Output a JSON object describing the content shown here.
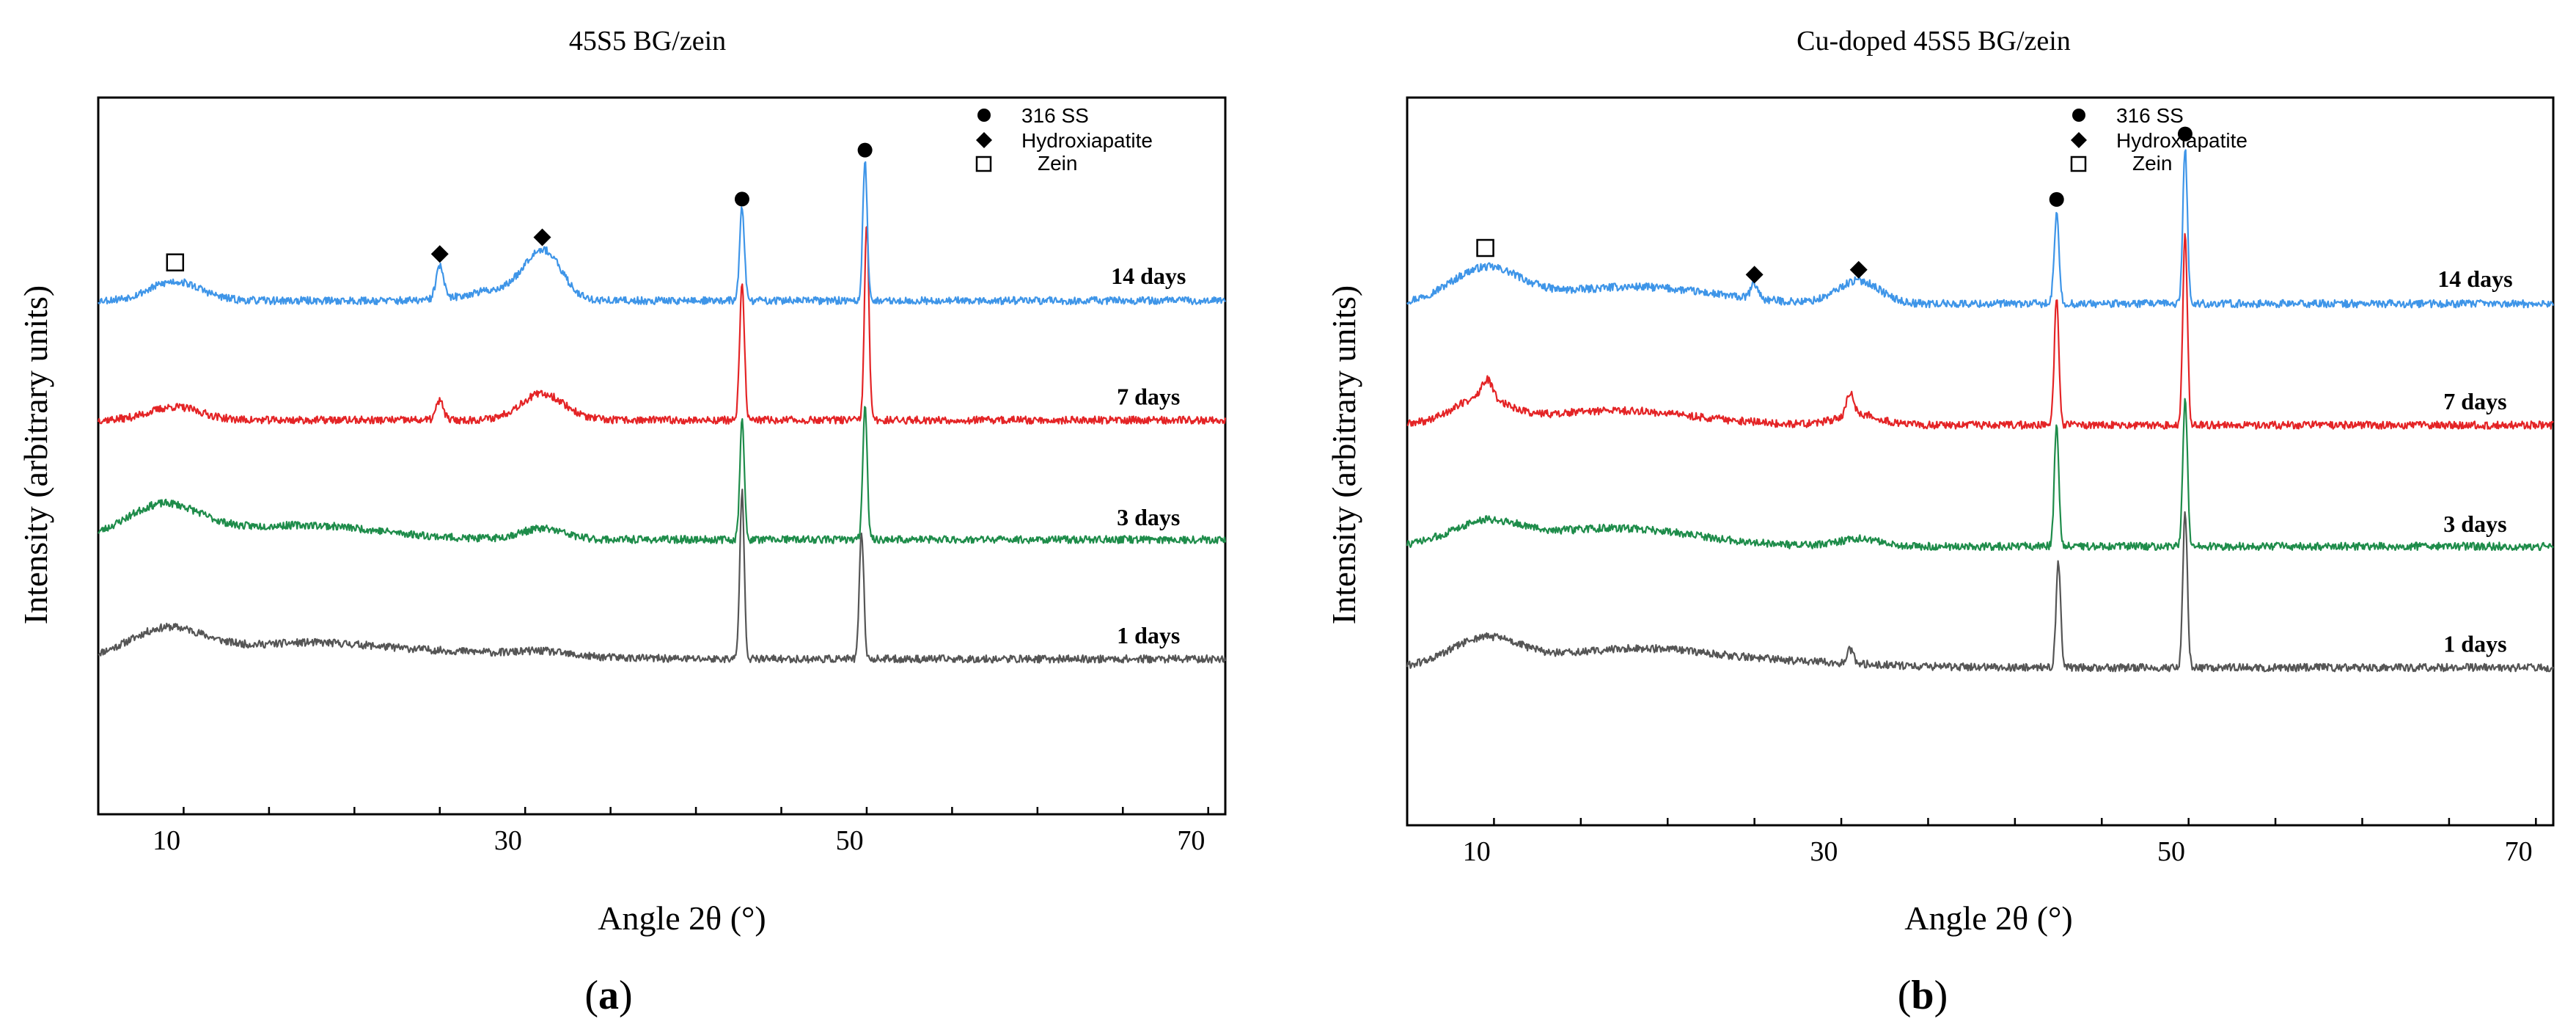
{
  "figure": {
    "panels": [
      {
        "panel_label_prefix": "(",
        "panel_label": "a",
        "panel_label_suffix": ")"
      },
      {
        "panel_label_prefix": "(",
        "panel_label": "b",
        "panel_label_suffix": ")"
      }
    ]
  },
  "chart_data": [
    {
      "type": "line",
      "title": "45S5 BG/zein",
      "xlabel": "Angle 2θ (°)",
      "ylabel": "Intensity (arbitrary units)",
      "xlim": [
        6,
        72
      ],
      "xticks": [
        10,
        30,
        50,
        70
      ],
      "yticks_shown": false,
      "legend": {
        "placement": "top-right",
        "entries": [
          {
            "label": "316 SS",
            "marker": "filled-circle"
          },
          {
            "label": "Hydroxiapatite",
            "marker": "filled-diamond"
          },
          {
            "label": "Zein",
            "marker": "open-square"
          }
        ]
      },
      "series": [
        {
          "name": "1 days",
          "color": "#555555",
          "baseline": 5,
          "seed": 11,
          "noise": 0.32,
          "humps": [
            [
              10,
              2.4,
              2.2
            ],
            [
              18,
              1.3,
              4.5
            ],
            [
              28,
              0.5,
              5
            ],
            [
              32,
              0.3,
              1.2
            ]
          ],
          "peaks": [
            [
              43.7,
              14,
              0.13
            ],
            [
              50.7,
              10.6,
              0.13
            ]
          ]
        },
        {
          "name": "3 days",
          "color": "#1e8c4a",
          "baseline": 15,
          "seed": 23,
          "noise": 0.32,
          "humps": [
            [
              9.8,
              2.8,
              2.2
            ],
            [
              18,
              1.2,
              4.5
            ],
            [
              32,
              0.9,
              1.3
            ]
          ],
          "peaks": [
            [
              43.7,
              10,
              0.13
            ],
            [
              50.9,
              11.3,
              0.13
            ]
          ]
        },
        {
          "name": "7 days",
          "color": "#e42426",
          "baseline": 25,
          "seed": 37,
          "noise": 0.32,
          "humps": [
            [
              10.5,
              1.1,
              1.5
            ],
            [
              32,
              2.2,
              1.3
            ]
          ],
          "peaks": [
            [
              26,
              1.6,
              0.22
            ],
            [
              43.7,
              11.2,
              0.14
            ],
            [
              51,
              16.5,
              0.13
            ]
          ]
        },
        {
          "name": "14 days",
          "color": "#3e95e8",
          "baseline": 35,
          "seed": 53,
          "noise": 0.32,
          "humps": [
            [
              10.5,
              1.6,
              1.5
            ],
            [
              32,
              4.2,
              1.1
            ],
            [
              29,
              0.8,
              1.5
            ]
          ],
          "peaks": [
            [
              26,
              2.8,
              0.22
            ],
            [
              43.7,
              7.8,
              0.14
            ],
            [
              50.9,
              11.6,
              0.13
            ]
          ]
        }
      ],
      "annotations": [
        {
          "marker": "open-square",
          "x": 10.5,
          "y": 38.2
        },
        {
          "marker": "filled-diamond",
          "x": 26,
          "y": 38.9
        },
        {
          "marker": "filled-diamond",
          "x": 32,
          "y": 40.3
        },
        {
          "marker": "filled-circle",
          "x": 43.7,
          "y": 43.5
        },
        {
          "marker": "filled-circle",
          "x": 50.9,
          "y": 47.6
        }
      ],
      "series_labels": [
        {
          "text": "14 days",
          "x": 67.5,
          "y": 36.4
        },
        {
          "text": "7 days",
          "x": 67.5,
          "y": 26.3
        },
        {
          "text": "3 days",
          "x": 67.5,
          "y": 16.2
        },
        {
          "text": "1 days",
          "x": 67.5,
          "y": 6.3
        }
      ]
    },
    {
      "type": "line",
      "title": "Cu-doped 45S5 BG/zein",
      "xlabel": "Angle 2θ (°)",
      "ylabel": "Intensity (arbitrary units)",
      "xlim": [
        6,
        72
      ],
      "xticks": [
        10,
        30,
        50,
        70
      ],
      "yticks_shown": false,
      "legend": {
        "placement": "top-right",
        "entries": [
          {
            "label": "316 SS",
            "marker": "filled-circle"
          },
          {
            "label": "Hydroxiapatite",
            "marker": "filled-diamond"
          },
          {
            "label": "Zein",
            "marker": "open-square"
          }
        ]
      },
      "series": [
        {
          "name": "1 days",
          "color": "#555555",
          "baseline": 5,
          "seed": 61,
          "noise": 0.32,
          "humps": [
            [
              10.5,
              2.3,
              2
            ],
            [
              19,
              1.5,
              4.5
            ],
            [
              28,
              0.4,
              5
            ]
          ],
          "peaks": [
            [
              31.5,
              1.1,
              0.2
            ],
            [
              43.5,
              8.8,
              0.13
            ],
            [
              50.8,
              12.9,
              0.13
            ]
          ]
        },
        {
          "name": "3 days",
          "color": "#1e8c4a",
          "baseline": 15,
          "seed": 73,
          "noise": 0.32,
          "humps": [
            [
              10.5,
              1.8,
              2
            ],
            [
              18,
              1.5,
              4.5
            ],
            [
              32,
              0.6,
              1.2
            ]
          ],
          "peaks": [
            [
              43.4,
              10,
              0.13
            ],
            [
              50.8,
              12.3,
              0.13
            ]
          ]
        },
        {
          "name": "7 days",
          "color": "#e42426",
          "baseline": 25,
          "seed": 89,
          "noise": 0.32,
          "humps": [
            [
              10.2,
              2.0,
              1.6
            ],
            [
              18,
              1.2,
              4.5
            ],
            [
              32,
              0.9,
              1.2
            ]
          ],
          "peaks": [
            [
              10.6,
              1.5,
              0.3
            ],
            [
              31.5,
              1.8,
              0.2
            ],
            [
              43.4,
              10.6,
              0.13
            ],
            [
              50.8,
              15.8,
              0.13
            ]
          ]
        },
        {
          "name": "14 days",
          "color": "#3e95e8",
          "baseline": 35,
          "seed": 97,
          "noise": 0.32,
          "humps": [
            [
              10.5,
              2.8,
              2
            ],
            [
              19,
              1.4,
              4.5
            ],
            [
              32,
              1.9,
              1.2
            ]
          ],
          "peaks": [
            [
              26,
              1.2,
              0.22
            ],
            [
              43.4,
              7.3,
              0.14
            ],
            [
              50.8,
              12.8,
              0.13
            ]
          ]
        }
      ],
      "annotations": [
        {
          "marker": "open-square",
          "x": 10.5,
          "y": 39.6
        },
        {
          "marker": "filled-diamond",
          "x": 26,
          "y": 37.4
        },
        {
          "marker": "filled-diamond",
          "x": 32,
          "y": 37.8
        },
        {
          "marker": "filled-circle",
          "x": 43.4,
          "y": 43.6
        },
        {
          "marker": "filled-circle",
          "x": 50.8,
          "y": 49.0
        }
      ],
      "series_labels": [
        {
          "text": "14 days",
          "x": 67.5,
          "y": 36.4
        },
        {
          "text": "7 days",
          "x": 67.5,
          "y": 26.3
        },
        {
          "text": "3 days",
          "x": 67.5,
          "y": 16.2
        },
        {
          "text": "1 days",
          "x": 67.5,
          "y": 6.3
        }
      ]
    }
  ]
}
